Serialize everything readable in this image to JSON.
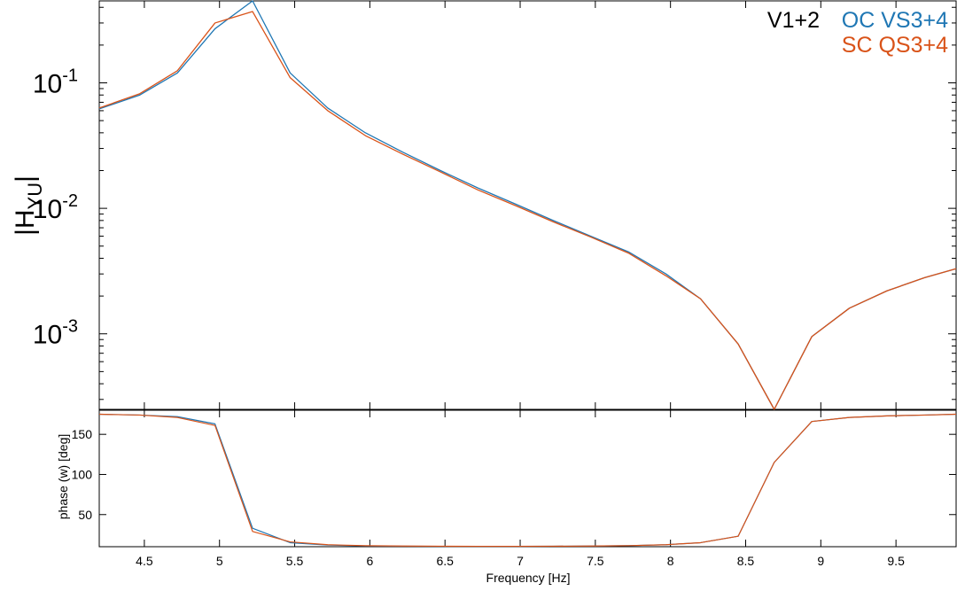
{
  "colors": {
    "oc_series": "#1f77b4",
    "sc_series": "#d95319",
    "legend_label_black": "#000000",
    "axis": "#000000"
  },
  "legend": {
    "prefix": "V1+2",
    "line1": "OC VS3+4",
    "line2": "SC QS3+4"
  },
  "chart_data": [
    {
      "type": "line",
      "name": "magnitude",
      "ylabel_main": "|H",
      "ylabel_sub": "YU",
      "ylabel_end": "|",
      "yscale": "log",
      "xlim": [
        4.2,
        9.9
      ],
      "ylim": [
        0.00025,
        0.45
      ],
      "ytick_values": [
        0.001,
        0.01,
        0.1
      ],
      "ytick_labels": [
        {
          "base": "10",
          "exp": "-3"
        },
        {
          "base": "10",
          "exp": "-2"
        },
        {
          "base": "10",
          "exp": "-1"
        }
      ],
      "x": [
        4.2,
        4.47,
        4.72,
        4.97,
        5.22,
        5.47,
        5.72,
        5.97,
        6.22,
        6.47,
        6.72,
        6.97,
        7.22,
        7.47,
        7.72,
        7.97,
        8.2,
        8.45,
        8.69,
        8.94,
        9.19,
        9.44,
        9.69,
        9.9
      ],
      "series": [
        {
          "name": "OC VS3+4",
          "values": [
            0.062,
            0.08,
            0.12,
            0.27,
            0.45,
            0.12,
            0.063,
            0.04,
            0.028,
            0.02,
            0.0145,
            0.0108,
            0.008,
            0.006,
            0.0045,
            0.003,
            0.0019,
            0.00083,
            0.00025,
            0.00095,
            0.0016,
            0.0022,
            0.0028,
            0.0033
          ]
        },
        {
          "name": "SC QS3+4",
          "values": [
            0.063,
            0.082,
            0.125,
            0.3,
            0.37,
            0.11,
            0.06,
            0.038,
            0.027,
            0.0195,
            0.014,
            0.0105,
            0.0078,
            0.0059,
            0.0044,
            0.0029,
            0.0019,
            0.00083,
            0.00025,
            0.00095,
            0.0016,
            0.0022,
            0.0028,
            0.0033
          ]
        }
      ]
    },
    {
      "type": "line",
      "name": "phase",
      "ylabel": "phase (w) [deg]",
      "xlabel": "Frequency [Hz]",
      "xlim": [
        4.2,
        9.9
      ],
      "ylim": [
        10,
        180
      ],
      "ytick_values": [
        50,
        100,
        150
      ],
      "ytick_labels": [
        "50",
        "100",
        "150"
      ],
      "xtick_values": [
        4.5,
        5,
        5.5,
        6,
        6.5,
        7,
        7.5,
        8,
        8.5,
        9,
        9.5
      ],
      "xtick_labels": [
        "4.5",
        "5",
        "5.5",
        "6",
        "6.5",
        "7",
        "7.5",
        "8",
        "8.5",
        "9",
        "9.5"
      ],
      "x": [
        4.2,
        4.47,
        4.72,
        4.97,
        5.22,
        5.47,
        5.72,
        5.97,
        6.22,
        6.47,
        6.72,
        6.97,
        7.22,
        7.47,
        7.72,
        7.97,
        8.2,
        8.45,
        8.69,
        8.94,
        9.19,
        9.44,
        9.69,
        9.9
      ],
      "series": [
        {
          "name": "OC VS3+4",
          "values": [
            175,
            174,
            172,
            163,
            33,
            15,
            12,
            11,
            10.6,
            10.5,
            10.5,
            10.5,
            10.6,
            10.8,
            11.3,
            12.5,
            15,
            23,
            115,
            166,
            171,
            173,
            174,
            175
          ]
        },
        {
          "name": "SC QS3+4",
          "values": [
            175,
            174,
            171,
            161,
            29,
            16,
            12.5,
            11.2,
            10.8,
            10.6,
            10.5,
            10.5,
            10.6,
            10.8,
            11.3,
            12.5,
            15,
            23,
            115,
            166,
            171,
            173,
            174,
            175
          ]
        }
      ]
    }
  ]
}
